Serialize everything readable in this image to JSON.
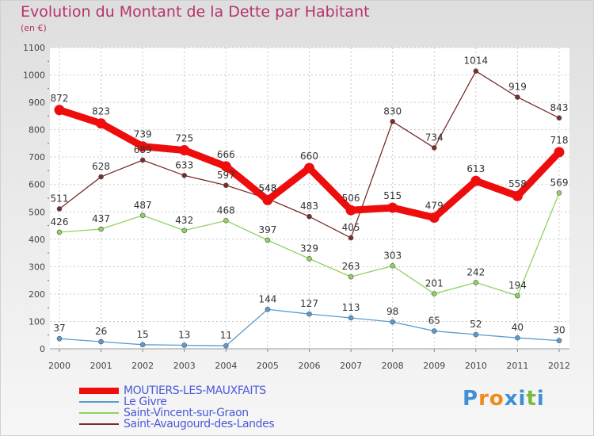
{
  "title": "Evolution du Montant de la Dette par Habitant",
  "subtitle": "(en €)",
  "logo": {
    "letters": [
      "P",
      "r",
      "o",
      "x",
      "i",
      "t",
      "i"
    ],
    "colors": [
      "#3f8fd8",
      "#f08a1c",
      "#f08a1c",
      "#3f8fd8",
      "#3f8fd8",
      "#7ab93e",
      "#3f8fd8"
    ]
  },
  "chart_data": {
    "type": "line",
    "categories": [
      "2000",
      "2001",
      "2002",
      "2003",
      "2004",
      "2005",
      "2006",
      "2007",
      "2008",
      "2009",
      "2010",
      "2011",
      "2012"
    ],
    "ylim": [
      0,
      1100
    ],
    "yticks": [
      "0",
      "100",
      "200",
      "300",
      "400",
      "500",
      "600",
      "700",
      "800",
      "900",
      "1000",
      "1100"
    ],
    "grid": true,
    "legend_position": "bottom",
    "series": [
      {
        "name": "MOUTIERS-LES-MAUXFAITS",
        "color": "#ee0d0d",
        "emphasis": true,
        "values": [
          872,
          823,
          739,
          725,
          666,
          543,
          660,
          506,
          515,
          479,
          613,
          558,
          718
        ],
        "labels": [
          "872",
          "823",
          "739",
          "725",
          "666",
          "543",
          "660",
          "506",
          "515",
          "479",
          "613",
          "558",
          "718"
        ]
      },
      {
        "name": "Le Givre",
        "color": "#5b9bcf",
        "emphasis": false,
        "values": [
          37,
          26,
          15,
          13,
          11,
          144,
          127,
          113,
          98,
          65,
          52,
          40,
          30
        ],
        "labels": [
          "37",
          "26",
          "15",
          "13",
          "11",
          "144",
          "127",
          "113",
          "98",
          "65",
          "52",
          "40",
          "30"
        ]
      },
      {
        "name": "Saint-Vincent-sur-Graon",
        "color": "#8fd25f",
        "emphasis": false,
        "values": [
          426,
          437,
          487,
          432,
          468,
          397,
          329,
          263,
          303,
          201,
          242,
          194,
          569
        ],
        "labels": [
          "426",
          "437",
          "487",
          "432",
          "468",
          "397",
          "329",
          "263",
          "303",
          "201",
          "242",
          "194",
          "569"
        ]
      },
      {
        "name": "Saint-Avaugourd-des-Landes",
        "color": "#7a2d2d",
        "emphasis": false,
        "values": [
          511,
          628,
          689,
          633,
          597,
          548,
          483,
          405,
          830,
          734,
          1014,
          919,
          843
        ],
        "labels": [
          "511",
          "628",
          "689",
          "633",
          "597",
          "548",
          "483",
          "405",
          "830",
          "734",
          "1014",
          "919",
          "843"
        ]
      }
    ]
  }
}
